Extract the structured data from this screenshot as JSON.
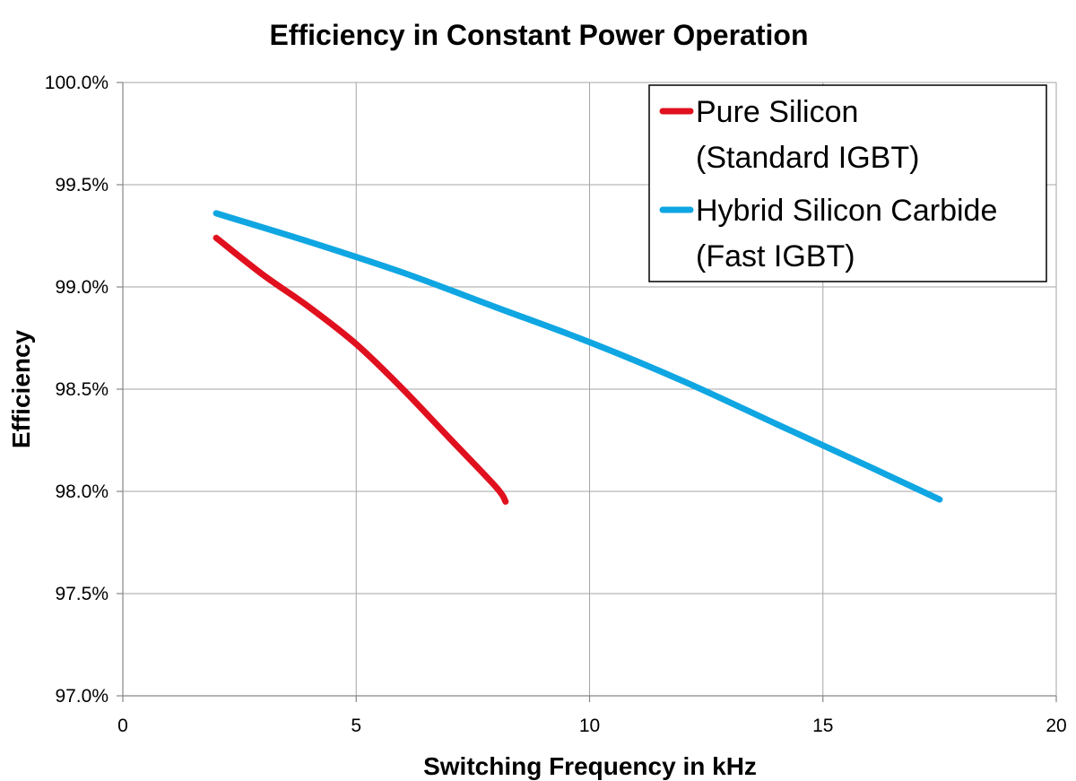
{
  "chart_data": {
    "type": "line",
    "title": "Efficiency in Constant Power Operation",
    "xlabel": "Switching Frequency in kHz",
    "ylabel": "Efficiency",
    "xlim": [
      0,
      20
    ],
    "ylim": [
      97.0,
      100.0
    ],
    "x_ticks": [
      0,
      5,
      10,
      15,
      20
    ],
    "x_tick_labels": [
      "0",
      "5",
      "10",
      "15",
      "20"
    ],
    "y_ticks": [
      97.0,
      97.5,
      98.0,
      98.5,
      99.0,
      99.5,
      100.0
    ],
    "y_tick_labels": [
      "97.0%",
      "97.5%",
      "98.0%",
      "98.5%",
      "99.0%",
      "99.5%",
      "100.0%"
    ],
    "grid": true,
    "legend_position": "top-right",
    "series": [
      {
        "name": "Pure Silicon (Standard IGBT)",
        "legend_lines": [
          "Pure Silicon",
          "(Standard IGBT)"
        ],
        "color": "#e0101e",
        "x": [
          2,
          3,
          4,
          5,
          6,
          7,
          8,
          8.2
        ],
        "y": [
          99.24,
          99.06,
          98.9,
          98.72,
          98.5,
          98.26,
          98.02,
          97.95
        ]
      },
      {
        "name": "Hybrid Silicon Carbide (Fast IGBT)",
        "legend_lines": [
          "Hybrid Silicon Carbide",
          "(Fast IGBT)"
        ],
        "color": "#0fa6e2",
        "x": [
          2,
          4,
          6,
          8,
          10,
          12,
          14,
          16,
          17.5
        ],
        "y": [
          99.36,
          99.22,
          99.07,
          98.9,
          98.73,
          98.54,
          98.33,
          98.12,
          97.96
        ]
      }
    ]
  }
}
